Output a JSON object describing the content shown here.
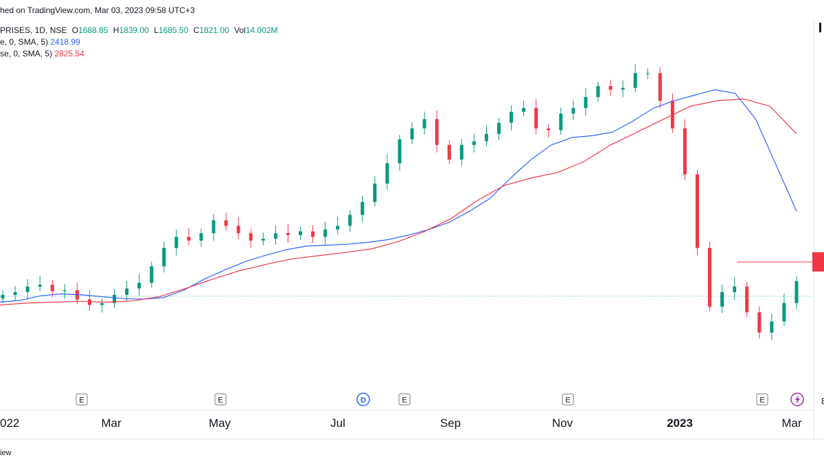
{
  "header": {
    "published": "hed on TradingView.com, Mar 03, 2023 09:58 UTC+3"
  },
  "legend": {
    "symbol": "PRISES, 1D, NSE",
    "o_label": "O",
    "o": "1688.85",
    "h_label": "H",
    "h": "1839.00",
    "l_label": "L",
    "l": "1685.50",
    "c_label": "C",
    "c": "1821.00",
    "vol_label": "Vol",
    "vol": "14.002M",
    "ma1_label": "e, 0, SMA, 5)",
    "ma1_value": "2418.99",
    "ma2_label": "se, 0, SMA, 5)",
    "ma2_value": "2825.54"
  },
  "footer": {
    "text": "iew"
  },
  "chart_data": {
    "type": "line",
    "x_tick_labels": [
      "022",
      "Mar",
      "May",
      "Jul",
      "Sep",
      "Nov",
      "2023",
      "Mar"
    ],
    "y_axis_visible_digit": "8",
    "events": [
      {
        "label": "E",
        "kind": "earnings"
      },
      {
        "label": "E",
        "kind": "earnings"
      },
      {
        "label": "D",
        "kind": "dividend"
      },
      {
        "label": "E",
        "kind": "earnings"
      },
      {
        "label": "E",
        "kind": "earnings"
      },
      {
        "label": "E",
        "kind": "earnings"
      }
    ],
    "series": [
      {
        "name": "price",
        "type": "candlestick",
        "values": [
          1745,
          1760,
          1790,
          1800,
          1765,
          1770,
          1720,
          1690,
          1700,
          1745,
          1780,
          1810,
          1900,
          2000,
          2060,
          2040,
          2080,
          2150,
          2120,
          2080,
          2040,
          2050,
          2080,
          2070,
          2090,
          2060,
          2100,
          2120,
          2180,
          2250,
          2350,
          2460,
          2590,
          2650,
          2700,
          2560,
          2480,
          2560,
          2580,
          2620,
          2680,
          2740,
          2760,
          2650,
          2640,
          2730,
          2760,
          2820,
          2880,
          2860,
          2870,
          2950,
          2950,
          2800,
          2650,
          2400,
          2000,
          1680,
          1760,
          1790,
          1650,
          1540,
          1600,
          1700,
          1820
        ]
      },
      {
        "name": "SMA 50",
        "color": "#2962ff",
        "values": [
          1705,
          1715,
          1740,
          1750,
          1745,
          1735,
          1725,
          1722,
          1730,
          1770,
          1830,
          1880,
          1925,
          1960,
          1990,
          2010,
          2015,
          2020,
          2030,
          2045,
          2070,
          2100,
          2140,
          2200,
          2270,
          2380,
          2480,
          2560,
          2600,
          2610,
          2630,
          2690,
          2760,
          2800,
          2830,
          2860,
          2840,
          2700,
          2450,
          2200
        ]
      },
      {
        "name": "SMA 100",
        "color": "#f23645",
        "values": [
          1690,
          1700,
          1705,
          1710,
          1705,
          1712,
          1735,
          1780,
          1830,
          1875,
          1910,
          1940,
          1958,
          1975,
          1995,
          2035,
          2090,
          2160,
          2260,
          2340,
          2380,
          2410,
          2470,
          2560,
          2630,
          2700,
          2770,
          2800,
          2810,
          2770,
          2620
        ]
      }
    ],
    "reference_lines": [
      {
        "kind": "horizontal",
        "label": "red price marker"
      },
      {
        "kind": "dotted",
        "label": "last price"
      }
    ],
    "grid": false
  }
}
